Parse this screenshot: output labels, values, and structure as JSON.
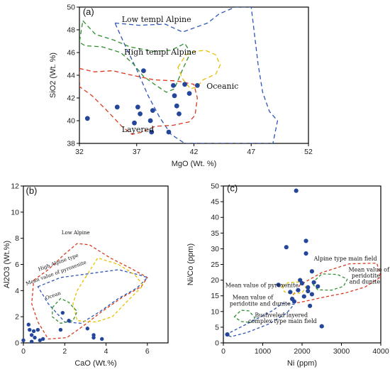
{
  "chart_data": [
    {
      "panel": "(a)",
      "type": "scatter",
      "xlabel": "MgO (Wt. %)",
      "ylabel": "SiO2 (Wt. %)",
      "xlim": [
        32,
        52
      ],
      "ylim": [
        38,
        50
      ],
      "xticks": [
        32,
        37,
        42,
        47,
        52
      ],
      "yticks": [
        38,
        40,
        42,
        44,
        46,
        48,
        50
      ],
      "points": [
        {
          "x": 32.7,
          "y": 40.2
        },
        {
          "x": 35.3,
          "y": 41.2
        },
        {
          "x": 37.1,
          "y": 41.2
        },
        {
          "x": 37.3,
          "y": 40.6
        },
        {
          "x": 36.8,
          "y": 39.8
        },
        {
          "x": 38.2,
          "y": 40.0
        },
        {
          "x": 38.4,
          "y": 40.9
        },
        {
          "x": 38.3,
          "y": 39.0
        },
        {
          "x": 39.8,
          "y": 39.0
        },
        {
          "x": 40.2,
          "y": 43.1
        },
        {
          "x": 40.3,
          "y": 42.2
        },
        {
          "x": 40.5,
          "y": 41.3
        },
        {
          "x": 40.7,
          "y": 40.6
        },
        {
          "x": 41.2,
          "y": 43.2
        },
        {
          "x": 41.6,
          "y": 42.4
        },
        {
          "x": 42.3,
          "y": 43.1
        },
        {
          "x": 37.6,
          "y": 44.4
        }
      ],
      "fields": [
        {
          "label": "Low templ Alpine",
          "color": "#2e55b8",
          "poly": [
            [
              35.1,
              48.6
            ],
            [
              37.2,
              48.4
            ],
            [
              39.5,
              48.5
            ],
            [
              41.0,
              47.8
            ],
            [
              43.2,
              48.6
            ],
            [
              44.2,
              49.4
            ],
            [
              45.6,
              50.0
            ],
            [
              47.0,
              50.0
            ],
            [
              47.3,
              47.5
            ],
            [
              47.6,
              45.0
            ],
            [
              48.0,
              42.5
            ],
            [
              48.6,
              40.8
            ],
            [
              49.3,
              40.0
            ],
            [
              48.9,
              38.0
            ],
            [
              43.0,
              38.0
            ],
            [
              41.2,
              38.0
            ],
            [
              40.0,
              38.8
            ],
            [
              39.0,
              40.3
            ],
            [
              38.0,
              42.2
            ],
            [
              37.0,
              44.5
            ],
            [
              36.0,
              46.6
            ],
            [
              35.1,
              48.6
            ]
          ]
        },
        {
          "label": "High templ Alpine",
          "color": "#2f8f2f",
          "poly": [
            [
              32.3,
              48.8
            ],
            [
              33.4,
              47.6
            ],
            [
              35.0,
              47.1
            ],
            [
              36.4,
              46.5
            ],
            [
              38.5,
              46.1
            ],
            [
              40.0,
              46.2
            ],
            [
              41.2,
              46.8
            ],
            [
              41.7,
              46.0
            ],
            [
              41.0,
              44.5
            ],
            [
              40.3,
              42.8
            ],
            [
              39.6,
              42.5
            ],
            [
              38.7,
              43.1
            ],
            [
              37.6,
              43.9
            ],
            [
              36.7,
              45.0
            ],
            [
              35.6,
              46.0
            ],
            [
              34.0,
              46.5
            ],
            [
              32.5,
              46.6
            ],
            [
              32.0,
              46.9
            ]
          ]
        },
        {
          "label": "Oceanic",
          "color": "#e6c100",
          "poly": [
            [
              40.6,
              44.7
            ],
            [
              41.3,
              45.8
            ],
            [
              42.1,
              46.1
            ],
            [
              43.0,
              46.2
            ],
            [
              43.9,
              45.8
            ],
            [
              44.3,
              44.9
            ],
            [
              43.9,
              44.1
            ],
            [
              42.8,
              43.6
            ],
            [
              42.3,
              43.0
            ],
            [
              41.7,
              42.8
            ],
            [
              41.0,
              43.7
            ],
            [
              40.6,
              44.7
            ]
          ]
        },
        {
          "label": "Layered",
          "color": "#d93a1f",
          "poly": [
            [
              32.0,
              44.6
            ],
            [
              33.3,
              44.3
            ],
            [
              34.9,
              44.4
            ],
            [
              36.6,
              44.0
            ],
            [
              38.5,
              43.6
            ],
            [
              40.5,
              43.5
            ],
            [
              42.0,
              43.2
            ],
            [
              42.3,
              42.0
            ],
            [
              42.1,
              40.5
            ],
            [
              41.6,
              39.9
            ],
            [
              40.2,
              39.6
            ],
            [
              38.6,
              39.5
            ],
            [
              37.5,
              39.0
            ],
            [
              36.6,
              38.8
            ],
            [
              35.7,
              39.5
            ],
            [
              34.3,
              41.0
            ],
            [
              33.1,
              42.2
            ],
            [
              32.0,
              43.0
            ]
          ]
        }
      ],
      "annotations": [
        {
          "text": "(a)",
          "x": 32.3,
          "y": 49.3
        },
        {
          "text": "Low templ Alpine",
          "x": 35.7,
          "y": 48.7
        },
        {
          "text": "High templ Alpine",
          "x": 35.9,
          "y": 45.8
        },
        {
          "text": "Oceanic",
          "x": 43.1,
          "y": 42.8
        },
        {
          "text": "Layered",
          "x": 35.7,
          "y": 39.0
        }
      ]
    },
    {
      "panel": "(b)",
      "type": "scatter",
      "xlabel": "CaO (Wt.%)",
      "ylabel": "Al2O3 (Wt.%)",
      "xlim": [
        0,
        7
      ],
      "ylim": [
        0,
        12
      ],
      "xticks": [
        0,
        2,
        4,
        6
      ],
      "yticks": [
        0,
        2,
        4,
        6,
        8,
        10,
        12
      ],
      "points": [
        {
          "x": 0.0,
          "y": 0.2
        },
        {
          "x": 0.25,
          "y": 1.4
        },
        {
          "x": 0.3,
          "y": 1.0
        },
        {
          "x": 0.4,
          "y": 0.6
        },
        {
          "x": 0.5,
          "y": 0.9
        },
        {
          "x": 0.7,
          "y": 1.0
        },
        {
          "x": 0.55,
          "y": 0.4
        },
        {
          "x": 0.8,
          "y": 0.2
        },
        {
          "x": 0.4,
          "y": 0.1
        },
        {
          "x": 0.95,
          "y": 0.3
        },
        {
          "x": 1.8,
          "y": 1.0
        },
        {
          "x": 1.9,
          "y": 2.3
        },
        {
          "x": 2.2,
          "y": 1.7
        },
        {
          "x": 3.1,
          "y": 1.1
        },
        {
          "x": 3.4,
          "y": 0.4
        },
        {
          "x": 3.4,
          "y": 0.6
        },
        {
          "x": 3.8,
          "y": 0.3
        }
      ],
      "fields": [
        {
          "label": "Low Alpine",
          "color": "#d93a1f",
          "poly": [
            [
              0.5,
              4.8
            ],
            [
              1.2,
              5.6
            ],
            [
              2.0,
              6.8
            ],
            [
              2.6,
              7.6
            ],
            [
              3.2,
              7.5
            ],
            [
              4.2,
              6.5
            ],
            [
              5.2,
              5.7
            ],
            [
              6.0,
              5.0
            ],
            [
              5.7,
              4.3
            ],
            [
              4.8,
              3.5
            ],
            [
              3.8,
              2.4
            ],
            [
              2.9,
              1.3
            ],
            [
              2.1,
              0.4
            ],
            [
              1.2,
              0.3
            ],
            [
              0.7,
              1.6
            ],
            [
              0.4,
              3.0
            ],
            [
              0.5,
              4.8
            ]
          ]
        },
        {
          "label": "High Alpine type",
          "color": "#2e55b8",
          "poly": [
            [
              0.7,
              4.3
            ],
            [
              1.8,
              5.0
            ],
            [
              3.2,
              5.3
            ],
            [
              4.6,
              5.6
            ],
            [
              5.6,
              5.2
            ],
            [
              6.0,
              5.0
            ],
            [
              5.5,
              4.2
            ],
            [
              4.6,
              3.4
            ],
            [
              3.8,
              2.5
            ],
            [
              2.8,
              1.5
            ],
            [
              2.0,
              1.6
            ],
            [
              1.2,
              3.0
            ],
            [
              0.7,
              4.3
            ]
          ]
        },
        {
          "label": "Mean value of pyroxenite",
          "color": "#e6c100",
          "poly": [
            [
              3.0,
              5.0
            ],
            [
              3.6,
              6.5
            ],
            [
              4.6,
              6.0
            ],
            [
              5.4,
              5.2
            ],
            [
              5.8,
              4.4
            ],
            [
              5.1,
              3.3
            ],
            [
              4.3,
              2.0
            ],
            [
              3.5,
              1.6
            ],
            [
              2.6,
              1.7
            ],
            [
              2.4,
              3.0
            ],
            [
              2.6,
              4.0
            ],
            [
              3.0,
              5.0
            ]
          ]
        },
        {
          "label": "Ocean",
          "color": "#2f8f2f",
          "poly": [
            [
              1.4,
              2.7
            ],
            [
              1.8,
              3.4
            ],
            [
              2.2,
              3.1
            ],
            [
              2.6,
              2.4
            ],
            [
              2.4,
              1.7
            ],
            [
              1.8,
              1.5
            ],
            [
              1.4,
              2.0
            ],
            [
              1.4,
              2.7
            ]
          ]
        }
      ],
      "annotations": [
        {
          "text": "(b)",
          "x": 0.12,
          "y": 11.4
        },
        {
          "text": "Low Alpine",
          "x": 1.85,
          "y": 8.3
        },
        {
          "text": "High Alpine type",
          "x": 0.75,
          "y": 5.5
        },
        {
          "text": "Mean value of pyroxenite",
          "x": 0.15,
          "y": 4.4
        },
        {
          "text": "Ocean",
          "x": 1.1,
          "y": 3.3
        }
      ]
    },
    {
      "panel": "(c)",
      "type": "scatter",
      "xlabel": "Ni (ppm)",
      "ylabel": "Ni/Co (ppm)",
      "xlim": [
        0,
        4000
      ],
      "ylim": [
        0,
        50
      ],
      "xticks": [
        0,
        1000,
        2000,
        3000,
        4000
      ],
      "yticks": [
        0,
        5,
        10,
        15,
        20,
        25,
        30,
        35,
        40,
        45,
        50
      ],
      "points": [
        {
          "x": 100,
          "y": 2.7
        },
        {
          "x": 1400,
          "y": 18.5
        },
        {
          "x": 1600,
          "y": 30.5
        },
        {
          "x": 1700,
          "y": 16.2
        },
        {
          "x": 1750,
          "y": 14.0
        },
        {
          "x": 1800,
          "y": 13.2
        },
        {
          "x": 1850,
          "y": 48.5
        },
        {
          "x": 1900,
          "y": 16.8
        },
        {
          "x": 1950,
          "y": 20.0
        },
        {
          "x": 2000,
          "y": 19.0
        },
        {
          "x": 2050,
          "y": 14.8
        },
        {
          "x": 2100,
          "y": 32.5
        },
        {
          "x": 2100,
          "y": 28.5
        },
        {
          "x": 2150,
          "y": 17.7
        },
        {
          "x": 2150,
          "y": 16.5
        },
        {
          "x": 2200,
          "y": 11.8
        },
        {
          "x": 2250,
          "y": 22.8
        },
        {
          "x": 2250,
          "y": 15.5
        },
        {
          "x": 2300,
          "y": 19.3
        },
        {
          "x": 2400,
          "y": 18.0
        },
        {
          "x": 2500,
          "y": 5.3
        }
      ],
      "fields": [
        {
          "label": "Alpine type main field",
          "color": "#d93a1f",
          "poly": [
            [
              1700,
              14.0
            ],
            [
              1950,
              18.5
            ],
            [
              2500,
              22.4
            ],
            [
              3200,
              25.2
            ],
            [
              3900,
              25.4
            ],
            [
              4000,
              21.0
            ],
            [
              3600,
              17.8
            ],
            [
              3100,
              15.9
            ],
            [
              2600,
              14.7
            ],
            [
              2200,
              13.6
            ],
            [
              1900,
              12.8
            ],
            [
              1700,
              14.0
            ]
          ]
        },
        {
          "label": "Mean value of peridotite and dunite",
          "color": "#2f8f2f",
          "poly": [
            [
              2250,
              19.0
            ],
            [
              2500,
              22.0
            ],
            [
              2900,
              21.8
            ],
            [
              3150,
              20.3
            ],
            [
              3050,
              18.0
            ],
            [
              2750,
              16.8
            ],
            [
              2400,
              16.9
            ],
            [
              2250,
              19.0
            ]
          ]
        },
        {
          "label": "Mean value of pyroxenite",
          "color": "#e6c100",
          "poly": [
            [
              1500,
              18.0
            ],
            [
              1650,
              19.2
            ],
            [
              1900,
              19.4
            ],
            [
              2100,
              17.8
            ],
            [
              2000,
              16.0
            ],
            [
              1750,
              15.6
            ],
            [
              1550,
              16.3
            ],
            [
              1500,
              18.0
            ]
          ]
        },
        {
          "label": "Mean value of peridotite and dunite (lower)",
          "color": "#2f8f2f",
          "poly": [
            [
              280,
              8.3
            ],
            [
              450,
              10.4
            ],
            [
              650,
              10.2
            ],
            [
              800,
              8.0
            ],
            [
              700,
              6.5
            ],
            [
              450,
              6.8
            ],
            [
              280,
              8.3
            ]
          ]
        },
        {
          "label": "Bushveled layered complex type main field",
          "color": "#2e55b8",
          "poly": [
            [
              60,
              2.6
            ],
            [
              700,
              6.7
            ],
            [
              1250,
              10.3
            ],
            [
              1500,
              12.6
            ],
            [
              1800,
              12.3
            ],
            [
              1600,
              9.4
            ],
            [
              1150,
              6.0
            ],
            [
              600,
              3.3
            ],
            [
              200,
              2.0
            ],
            [
              60,
              2.6
            ]
          ]
        }
      ],
      "annotations": [
        {
          "text": "(c)",
          "x": 90,
          "y": 48.3
        },
        {
          "text": "Alpine type main field",
          "x": 2300,
          "y": 26.3
        },
        {
          "text": "Mean value of",
          "x": 3180,
          "y": 22.7
        },
        {
          "text": "peridotite",
          "x": 3260,
          "y": 20.8
        },
        {
          "text": "and dunite",
          "x": 3200,
          "y": 18.9
        },
        {
          "text": "Mean value of pyroxenite",
          "x": 50,
          "y": 17.8
        },
        {
          "text": "Mean value of",
          "x": 230,
          "y": 13.9
        },
        {
          "text": "peridotite and dunite",
          "x": 160,
          "y": 11.9
        },
        {
          "text": "Bushveled layered",
          "x": 800,
          "y": 8.3
        },
        {
          "text": "complex type  main field",
          "x": 630,
          "y": 6.3
        }
      ]
    }
  ]
}
